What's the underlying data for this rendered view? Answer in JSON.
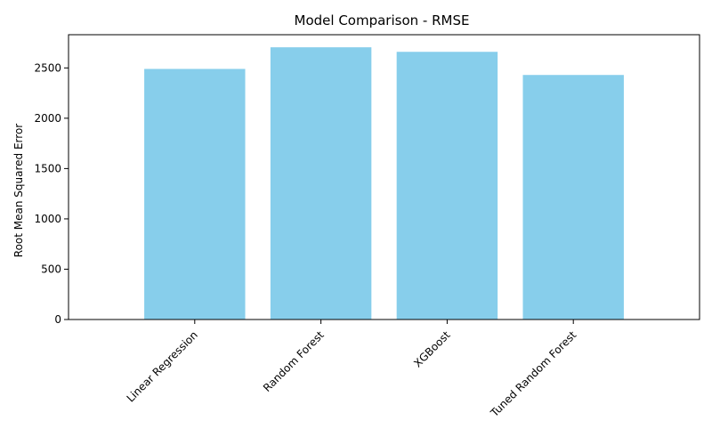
{
  "chart_data": {
    "type": "bar",
    "title": "Model Comparison - RMSE",
    "xlabel": "",
    "ylabel": "Root Mean Squared Error",
    "categories": [
      "Linear Regression",
      "Random Forest",
      "XGBoost",
      "Tuned Random Forest"
    ],
    "values": [
      2490,
      2705,
      2660,
      2430
    ],
    "ylim": [
      0,
      2830
    ],
    "yticks": [
      0,
      500,
      1000,
      1500,
      2000,
      2500
    ],
    "grid": false,
    "bar_color": "#87ceeb"
  }
}
